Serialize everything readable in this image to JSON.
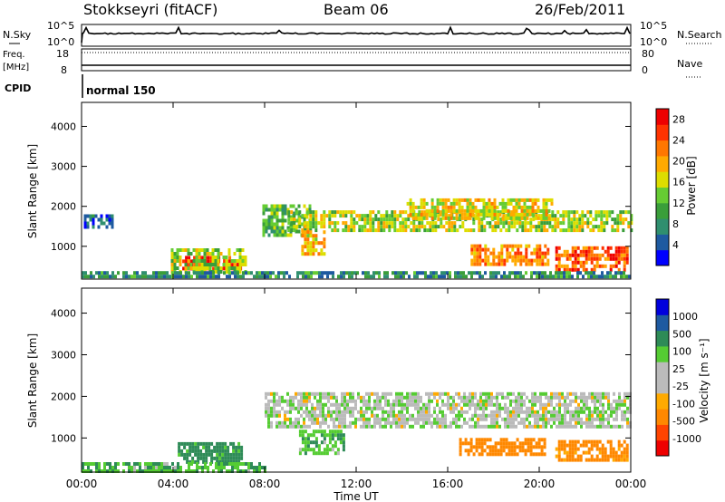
{
  "header": {
    "station": "Stokkseyri (fitACF)",
    "beam": "Beam 06",
    "date": "26/Feb/2011"
  },
  "top_panel": {
    "nsky_label": "N.Sky",
    "nsearch_label": "N.Search",
    "freq_label": "Freq.",
    "freq_unit": "[MHz]",
    "nave_label": "Nave",
    "cpid_label": "CPID",
    "cpid_value": "normal 150",
    "noise_ticks": [
      "10^5",
      "10^0"
    ],
    "freq_ticks": [
      "18",
      "8"
    ],
    "nave_ticks": [
      "80",
      "0"
    ]
  },
  "colors": {
    "power_scale": [
      "#0000ff",
      "#1e5aa0",
      "#2f8f6f",
      "#3a9e3a",
      "#66cc33",
      "#dddd00",
      "#ffaa00",
      "#ff7700",
      "#ff3300",
      "#ee0000"
    ],
    "velocity_scale": [
      "#ee0000",
      "#ff4400",
      "#ff8800",
      "#ffaa00",
      "#bbbbbb",
      "#bbbbbb",
      "#55cc33",
      "#2e8b57",
      "#1e5aa0",
      "#0000dd"
    ]
  },
  "chart_data": [
    {
      "type": "heatmap",
      "name": "power-panel",
      "ylabel": "Slant Range [km]",
      "xlabel": "",
      "x_ticks": [
        "00:00",
        "04:00",
        "08:00",
        "12:00",
        "16:00",
        "20:00",
        "00:00"
      ],
      "y_ticks": [
        "1000",
        "2000",
        "3000",
        "4000"
      ],
      "ylim": [
        180,
        4600
      ],
      "xlim_hours": [
        0,
        24
      ],
      "colorbar": {
        "label": "Power [dB]",
        "ticks": [
          "4",
          "8",
          "12",
          "16",
          "20",
          "24",
          "28"
        ]
      },
      "regions": [
        {
          "t0": 4.4,
          "t1": 6.9,
          "r0": 450,
          "r1": 760,
          "v": 27
        },
        {
          "t0": 3.9,
          "t1": 7.2,
          "r0": 350,
          "r1": 950,
          "v": 14
        },
        {
          "t0": 7.9,
          "t1": 10.0,
          "r0": 1300,
          "r1": 2050,
          "v": 12
        },
        {
          "t0": 9.0,
          "t1": 24.0,
          "r0": 1400,
          "r1": 1900,
          "v": 15
        },
        {
          "t0": 9.6,
          "t1": 10.6,
          "r0": 850,
          "r1": 1400,
          "v": 19
        },
        {
          "t0": 14.2,
          "t1": 20.5,
          "r0": 1700,
          "r1": 2200,
          "v": 17
        },
        {
          "t0": 17.0,
          "t1": 20.4,
          "r0": 550,
          "r1": 1050,
          "v": 22
        },
        {
          "t0": 20.7,
          "t1": 23.8,
          "r0": 450,
          "r1": 1000,
          "v": 24
        },
        {
          "t0": 0.0,
          "t1": 23.9,
          "r0": 200,
          "r1": 380,
          "v": 8
        },
        {
          "t0": 0.1,
          "t1": 1.3,
          "r0": 1500,
          "r1": 1800,
          "v": 6
        }
      ]
    },
    {
      "type": "heatmap",
      "name": "velocity-panel",
      "ylabel": "Slant Range [km]",
      "xlabel": "Time UT",
      "x_ticks": [
        "00:00",
        "04:00",
        "08:00",
        "12:00",
        "16:00",
        "20:00",
        "00:00"
      ],
      "y_ticks": [
        "1000",
        "2000",
        "3000",
        "4000"
      ],
      "ylim": [
        180,
        4600
      ],
      "xlim_hours": [
        0,
        24
      ],
      "colorbar": {
        "label": "Velocity [m s⁻¹]",
        "ticks": [
          "1000",
          "500",
          "100",
          "25",
          "-25",
          "-100",
          "-500",
          "-1000"
        ]
      },
      "regions": [
        {
          "t0": 4.2,
          "t1": 7.0,
          "r0": 450,
          "r1": 900,
          "v": 150
        },
        {
          "t0": 8.0,
          "t1": 24.0,
          "r0": 1300,
          "r1": 2100,
          "v": 0
        },
        {
          "t0": 9.5,
          "t1": 11.5,
          "r0": 650,
          "r1": 1200,
          "v": 80
        },
        {
          "t0": 16.5,
          "t1": 20.3,
          "r0": 600,
          "r1": 1000,
          "v": -200
        },
        {
          "t0": 20.7,
          "t1": 23.9,
          "r0": 450,
          "r1": 950,
          "v": -150
        },
        {
          "t0": 0.0,
          "t1": 8.0,
          "r0": 200,
          "r1": 420,
          "v": 80
        }
      ]
    }
  ]
}
